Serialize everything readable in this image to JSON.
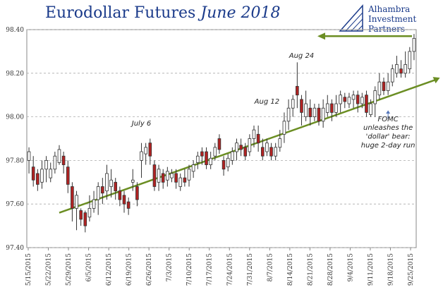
{
  "title": {
    "main": "Eurodollar Futures",
    "italic": "June 2018"
  },
  "logo": {
    "lines": [
      "Alhambra",
      "Investment",
      "Partners"
    ]
  },
  "chart_data": {
    "type": "candlestick",
    "title": "Eurodollar Futures June 2018",
    "ylim": [
      97.4,
      98.4
    ],
    "yticks": [
      "98.40",
      "98.20",
      "98.00",
      "97.80",
      "97.60",
      "97.40"
    ],
    "xticks": [
      "5/15/2015",
      "5/22/2015",
      "5/29/2015",
      "6/5/2015",
      "6/12/2015",
      "6/19/2015",
      "6/26/2015",
      "7/3/2015",
      "7/10/2015",
      "7/17/2015",
      "7/24/2015",
      "7/31/2015",
      "8/7/2015",
      "8/14/2015",
      "8/21/2015",
      "8/28/2015",
      "9/4/2015",
      "9/11/2015",
      "9/18/2015",
      "9/25/2015"
    ],
    "grid": "horizontal dashed",
    "candles": [
      {
        "o": 97.8,
        "c": 97.84,
        "h": 97.86,
        "l": 97.74,
        "d": "up"
      },
      {
        "o": 97.77,
        "c": 97.71,
        "h": 97.82,
        "l": 97.68,
        "d": "down"
      },
      {
        "o": 97.74,
        "c": 97.69,
        "h": 97.76,
        "l": 97.66,
        "d": "down"
      },
      {
        "o": 97.7,
        "c": 97.76,
        "h": 97.8,
        "l": 97.67,
        "d": "up"
      },
      {
        "o": 97.76,
        "c": 97.8,
        "h": 97.82,
        "l": 97.7,
        "d": "up"
      },
      {
        "o": 97.72,
        "c": 97.76,
        "h": 97.79,
        "l": 97.7,
        "d": "up"
      },
      {
        "o": 97.76,
        "c": 97.82,
        "h": 97.84,
        "l": 97.74,
        "d": "up"
      },
      {
        "o": 97.79,
        "c": 97.85,
        "h": 97.87,
        "l": 97.78,
        "d": "up"
      },
      {
        "o": 97.82,
        "c": 97.78,
        "h": 97.84,
        "l": 97.74,
        "d": "down"
      },
      {
        "o": 97.77,
        "c": 97.69,
        "h": 97.8,
        "l": 97.65,
        "d": "down"
      },
      {
        "o": 97.68,
        "c": 97.58,
        "h": 97.7,
        "l": 97.52,
        "d": "down"
      },
      {
        "o": 97.58,
        "c": 97.64,
        "h": 97.66,
        "l": 97.48,
        "d": "up"
      },
      {
        "o": 97.57,
        "c": 97.53,
        "h": 97.58,
        "l": 97.5,
        "d": "down"
      },
      {
        "o": 97.56,
        "c": 97.5,
        "h": 97.57,
        "l": 97.47,
        "d": "down"
      },
      {
        "o": 97.54,
        "c": 97.58,
        "h": 97.64,
        "l": 97.52,
        "d": "up"
      },
      {
        "o": 97.58,
        "c": 97.62,
        "h": 97.66,
        "l": 97.56,
        "d": "up"
      },
      {
        "o": 97.62,
        "c": 97.68,
        "h": 97.7,
        "l": 97.55,
        "d": "up"
      },
      {
        "o": 97.68,
        "c": 97.65,
        "h": 97.72,
        "l": 97.6,
        "d": "down"
      },
      {
        "o": 97.66,
        "c": 97.74,
        "h": 97.78,
        "l": 97.62,
        "d": "up"
      },
      {
        "o": 97.68,
        "c": 97.71,
        "h": 97.76,
        "l": 97.63,
        "d": "up"
      },
      {
        "o": 97.7,
        "c": 97.66,
        "h": 97.72,
        "l": 97.62,
        "d": "down"
      },
      {
        "o": 97.66,
        "c": 97.62,
        "h": 97.68,
        "l": 97.59,
        "d": "down"
      },
      {
        "o": 97.64,
        "c": 97.6,
        "h": 97.66,
        "l": 97.56,
        "d": "down"
      },
      {
        "o": 97.61,
        "c": 97.58,
        "h": 97.63,
        "l": 97.55,
        "d": "down"
      },
      {
        "o": 97.7,
        "c": 97.71,
        "h": 97.76,
        "l": 97.66,
        "d": "up"
      },
      {
        "o": 97.68,
        "c": 97.62,
        "h": 97.7,
        "l": 97.59,
        "d": "down"
      },
      {
        "o": 97.8,
        "c": 97.84,
        "h": 97.88,
        "l": 97.72,
        "d": "up"
      },
      {
        "o": 97.83,
        "c": 97.86,
        "h": 97.88,
        "l": 97.78,
        "d": "up"
      },
      {
        "o": 97.88,
        "c": 97.82,
        "h": 97.9,
        "l": 97.78,
        "d": "down"
      },
      {
        "o": 97.78,
        "c": 97.68,
        "h": 97.8,
        "l": 97.66,
        "d": "down"
      },
      {
        "o": 97.7,
        "c": 97.76,
        "h": 97.78,
        "l": 97.66,
        "d": "up"
      },
      {
        "o": 97.74,
        "c": 97.7,
        "h": 97.76,
        "l": 97.67,
        "d": "down"
      },
      {
        "o": 97.71,
        "c": 97.75,
        "h": 97.77,
        "l": 97.68,
        "d": "up"
      },
      {
        "o": 97.72,
        "c": 97.74,
        "h": 97.76,
        "l": 97.7,
        "d": "up"
      },
      {
        "o": 97.74,
        "c": 97.7,
        "h": 97.76,
        "l": 97.67,
        "d": "down"
      },
      {
        "o": 97.68,
        "c": 97.72,
        "h": 97.74,
        "l": 97.66,
        "d": "up"
      },
      {
        "o": 97.72,
        "c": 97.7,
        "h": 97.76,
        "l": 97.68,
        "d": "down"
      },
      {
        "o": 97.71,
        "c": 97.76,
        "h": 97.78,
        "l": 97.68,
        "d": "up"
      },
      {
        "o": 97.75,
        "c": 97.78,
        "h": 97.8,
        "l": 97.72,
        "d": "up"
      },
      {
        "o": 97.79,
        "c": 97.82,
        "h": 97.84,
        "l": 97.76,
        "d": "up"
      },
      {
        "o": 97.84,
        "c": 97.82,
        "h": 97.86,
        "l": 97.78,
        "d": "down"
      },
      {
        "o": 97.84,
        "c": 97.78,
        "h": 97.86,
        "l": 97.76,
        "d": "down"
      },
      {
        "o": 97.78,
        "c": 97.81,
        "h": 97.84,
        "l": 97.76,
        "d": "up"
      },
      {
        "o": 97.82,
        "c": 97.86,
        "h": 97.88,
        "l": 97.8,
        "d": "up"
      },
      {
        "o": 97.9,
        "c": 97.85,
        "h": 97.92,
        "l": 97.83,
        "d": "down"
      },
      {
        "o": 97.8,
        "c": 97.76,
        "h": 97.82,
        "l": 97.73,
        "d": "down"
      },
      {
        "o": 97.77,
        "c": 97.81,
        "h": 97.83,
        "l": 97.75,
        "d": "up"
      },
      {
        "o": 97.8,
        "c": 97.84,
        "h": 97.86,
        "l": 97.78,
        "d": "up"
      },
      {
        "o": 97.84,
        "c": 97.88,
        "h": 97.9,
        "l": 97.8,
        "d": "up"
      },
      {
        "o": 97.87,
        "c": 97.85,
        "h": 97.9,
        "l": 97.82,
        "d": "down"
      },
      {
        "o": 97.86,
        "c": 97.82,
        "h": 97.88,
        "l": 97.8,
        "d": "down"
      },
      {
        "o": 97.84,
        "c": 97.9,
        "h": 97.92,
        "l": 97.82,
        "d": "up"
      },
      {
        "o": 97.9,
        "c": 97.94,
        "h": 97.96,
        "l": 97.86,
        "d": "up"
      },
      {
        "o": 97.92,
        "c": 97.88,
        "h": 97.96,
        "l": 97.84,
        "d": "down"
      },
      {
        "o": 97.86,
        "c": 97.82,
        "h": 97.9,
        "l": 97.8,
        "d": "down"
      },
      {
        "o": 97.84,
        "c": 97.88,
        "h": 97.9,
        "l": 97.82,
        "d": "up"
      },
      {
        "o": 97.86,
        "c": 97.82,
        "h": 97.88,
        "l": 97.8,
        "d": "down"
      },
      {
        "o": 97.82,
        "c": 97.86,
        "h": 97.88,
        "l": 97.8,
        "d": "up"
      },
      {
        "o": 97.86,
        "c": 97.9,
        "h": 97.94,
        "l": 97.84,
        "d": "up"
      },
      {
        "o": 97.92,
        "c": 97.98,
        "h": 98.02,
        "l": 97.88,
        "d": "up"
      },
      {
        "o": 97.98,
        "c": 98.04,
        "h": 98.08,
        "l": 97.94,
        "d": "up"
      },
      {
        "o": 98.04,
        "c": 98.08,
        "h": 98.1,
        "l": 98.0,
        "d": "up"
      },
      {
        "o": 98.14,
        "c": 98.1,
        "h": 98.25,
        "l": 98.04,
        "d": "down"
      },
      {
        "o": 98.08,
        "c": 98.02,
        "h": 98.1,
        "l": 97.96,
        "d": "down"
      },
      {
        "o": 98.0,
        "c": 98.06,
        "h": 98.12,
        "l": 97.98,
        "d": "up"
      },
      {
        "o": 98.04,
        "c": 98.0,
        "h": 98.08,
        "l": 97.96,
        "d": "down"
      },
      {
        "o": 98.0,
        "c": 98.04,
        "h": 98.06,
        "l": 97.98,
        "d": "up"
      },
      {
        "o": 98.04,
        "c": 97.98,
        "h": 98.06,
        "l": 97.96,
        "d": "down"
      },
      {
        "o": 97.98,
        "c": 98.04,
        "h": 98.08,
        "l": 97.95,
        "d": "up"
      },
      {
        "o": 98.02,
        "c": 98.06,
        "h": 98.1,
        "l": 98.0,
        "d": "up"
      },
      {
        "o": 98.06,
        "c": 98.02,
        "h": 98.08,
        "l": 97.98,
        "d": "down"
      },
      {
        "o": 98.02,
        "c": 98.06,
        "h": 98.1,
        "l": 98.0,
        "d": "up"
      },
      {
        "o": 98.06,
        "c": 98.1,
        "h": 98.12,
        "l": 98.02,
        "d": "up"
      },
      {
        "o": 98.09,
        "c": 98.07,
        "h": 98.11,
        "l": 98.04,
        "d": "down"
      },
      {
        "o": 98.06,
        "c": 98.09,
        "h": 98.11,
        "l": 98.04,
        "d": "up"
      },
      {
        "o": 98.08,
        "c": 98.1,
        "h": 98.12,
        "l": 98.04,
        "d": "up"
      },
      {
        "o": 98.1,
        "c": 98.06,
        "h": 98.12,
        "l": 98.02,
        "d": "down"
      },
      {
        "o": 98.06,
        "c": 98.09,
        "h": 98.11,
        "l": 98.04,
        "d": "up"
      },
      {
        "o": 98.1,
        "c": 98.02,
        "h": 98.12,
        "l": 98.0,
        "d": "down"
      },
      {
        "o": 98.01,
        "c": 98.06,
        "h": 98.08,
        "l": 98.0,
        "d": "up"
      },
      {
        "o": 98.06,
        "c": 98.12,
        "h": 98.14,
        "l": 98.0,
        "d": "up"
      },
      {
        "o": 98.1,
        "c": 98.16,
        "h": 98.2,
        "l": 98.08,
        "d": "up"
      },
      {
        "o": 98.16,
        "c": 98.12,
        "h": 98.18,
        "l": 98.1,
        "d": "down"
      },
      {
        "o": 98.12,
        "c": 98.16,
        "h": 98.2,
        "l": 98.1,
        "d": "up"
      },
      {
        "o": 98.16,
        "c": 98.22,
        "h": 98.24,
        "l": 98.14,
        "d": "up"
      },
      {
        "o": 98.2,
        "c": 98.24,
        "h": 98.28,
        "l": 98.18,
        "d": "up"
      },
      {
        "o": 98.22,
        "c": 98.2,
        "h": 98.26,
        "l": 98.18,
        "d": "down"
      },
      {
        "o": 98.2,
        "c": 98.24,
        "h": 98.3,
        "l": 98.18,
        "d": "up"
      },
      {
        "o": 98.22,
        "c": 98.3,
        "h": 98.32,
        "l": 98.2,
        "d": "up"
      },
      {
        "o": 98.3,
        "c": 98.36,
        "h": 98.38,
        "l": 98.26,
        "d": "up"
      }
    ],
    "trendline": {
      "from": [
        7,
        97.56
      ],
      "to": [
        94,
        98.17
      ]
    },
    "top_arrow": {
      "from": 98.36,
      "at": 98.37
    },
    "annotations": [
      {
        "text": "July 6",
        "candle": 26,
        "y": 97.96
      },
      {
        "text": "Aug 12",
        "candle": 55,
        "y": 98.06
      },
      {
        "text": "Aug 24",
        "candle": 63,
        "y": 98.27
      },
      {
        "text": "FOMC",
        "candle": 83,
        "y": 97.98
      },
      {
        "text": "unleashes the",
        "candle": 83,
        "y": 97.94
      },
      {
        "text": "'dollar' bear:",
        "candle": 83,
        "y": 97.9
      },
      {
        "text": "huge 2-day run",
        "candle": 83,
        "y": 97.86
      }
    ],
    "colors": {
      "up": "#ffffff",
      "down": "#b22222",
      "trend": "#6b8e23",
      "title": "#1a3a8a"
    }
  }
}
